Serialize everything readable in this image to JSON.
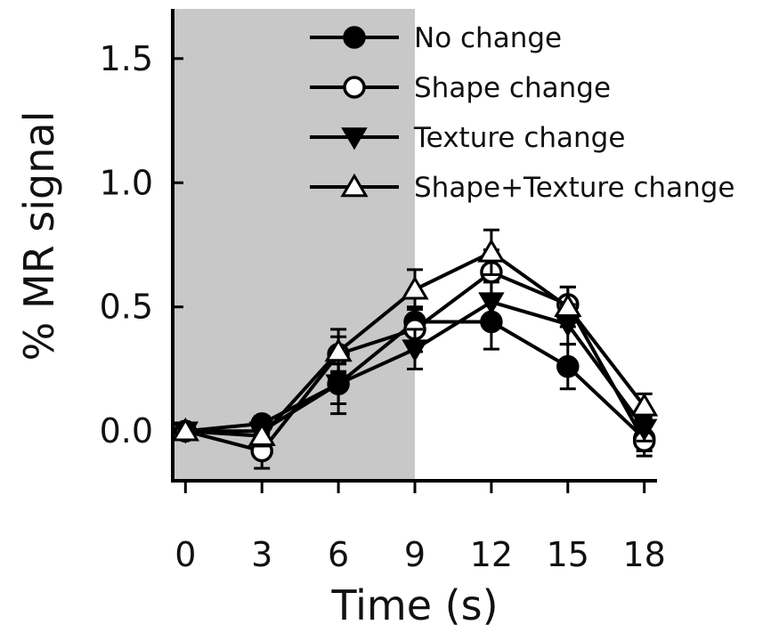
{
  "chart_data": {
    "type": "line",
    "title": "",
    "xlabel": "Time (s)",
    "ylabel": "% MR signal",
    "x": [
      0,
      3,
      6,
      9,
      12,
      15,
      18
    ],
    "x_ticks": [
      "0",
      "3",
      "6",
      "9",
      "12",
      "15",
      "18"
    ],
    "y_ticks": [
      "0.0",
      "0.5",
      "1.0",
      "1.5"
    ],
    "xlim": [
      -0.5,
      18.5
    ],
    "ylim": [
      -0.2,
      1.7
    ],
    "grid": false,
    "legend_position": "top-right",
    "shaded_region": {
      "x": [
        0,
        9
      ],
      "color": "#c8c8c8"
    },
    "series": [
      {
        "name": "No change",
        "marker": "filled-circle",
        "values": [
          0.0,
          0.03,
          0.19,
          0.44,
          0.44,
          0.26,
          -0.03
        ],
        "errors": [
          0.0,
          0.03,
          0.12,
          0.1,
          0.11,
          0.09,
          0.05
        ]
      },
      {
        "name": "Shape change",
        "marker": "open-circle",
        "values": [
          0.0,
          -0.08,
          0.31,
          0.41,
          0.64,
          0.51,
          -0.04
        ],
        "errors": [
          0.0,
          0.07,
          0.07,
          0.09,
          0.09,
          0.07,
          0.06
        ]
      },
      {
        "name": "Texture change",
        "marker": "filled-triangle-down",
        "values": [
          0.0,
          0.0,
          0.19,
          0.33,
          0.52,
          0.43,
          0.01
        ],
        "errors": [
          0.0,
          0.04,
          0.08,
          0.08,
          0.08,
          0.08,
          0.05
        ]
      },
      {
        "name": "Shape+Texture change",
        "marker": "open-triangle-up",
        "values": [
          0.0,
          -0.02,
          0.32,
          0.57,
          0.72,
          0.5,
          0.1
        ],
        "errors": [
          0.0,
          0.04,
          0.09,
          0.08,
          0.09,
          0.08,
          0.05
        ]
      }
    ]
  }
}
